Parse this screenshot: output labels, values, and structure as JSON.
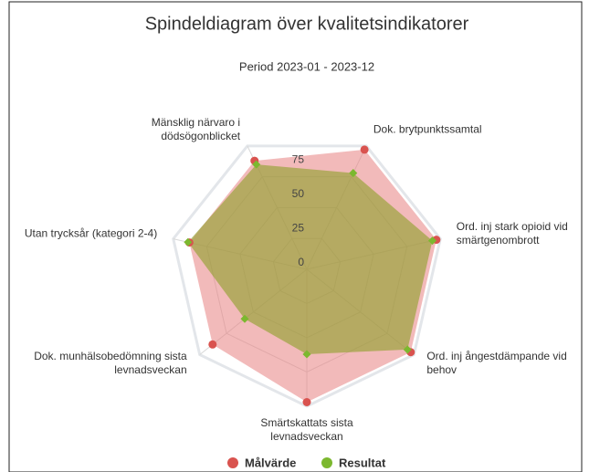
{
  "chart_data": {
    "type": "radar",
    "title": "Spindeldiagram över kvalitetsindikatorer",
    "subtitle": "Period 2023-01 - 2023-12",
    "categories": [
      "Dok. brytpunktssamtal",
      "Ord. inj stark opioid vid smärtgenombrott",
      "Ord. inj ångestdämpande vid behov",
      "Smärtskattats sista levnadsveckan",
      "Dok. munhälsobedömning sista levnadsveckan",
      "Utan trycksår (kategori 2-4)",
      "Mänsklig närvaro i dödsögonblicket"
    ],
    "series": [
      {
        "name": "Målvärde",
        "color": "#d9534f",
        "fill": "rgba(232,130,130,0.55)",
        "values": [
          97,
          97,
          97,
          97,
          88,
          88,
          88
        ]
      },
      {
        "name": "Resultat",
        "color": "#7cb82f",
        "fill": "rgba(140,160,40,0.6)",
        "values": [
          78,
          94,
          94,
          62,
          58,
          89,
          85
        ]
      }
    ],
    "ylim": [
      0,
      100
    ],
    "yticks": [
      0,
      25,
      50,
      75
    ],
    "grid": true,
    "legend": "bottom"
  }
}
